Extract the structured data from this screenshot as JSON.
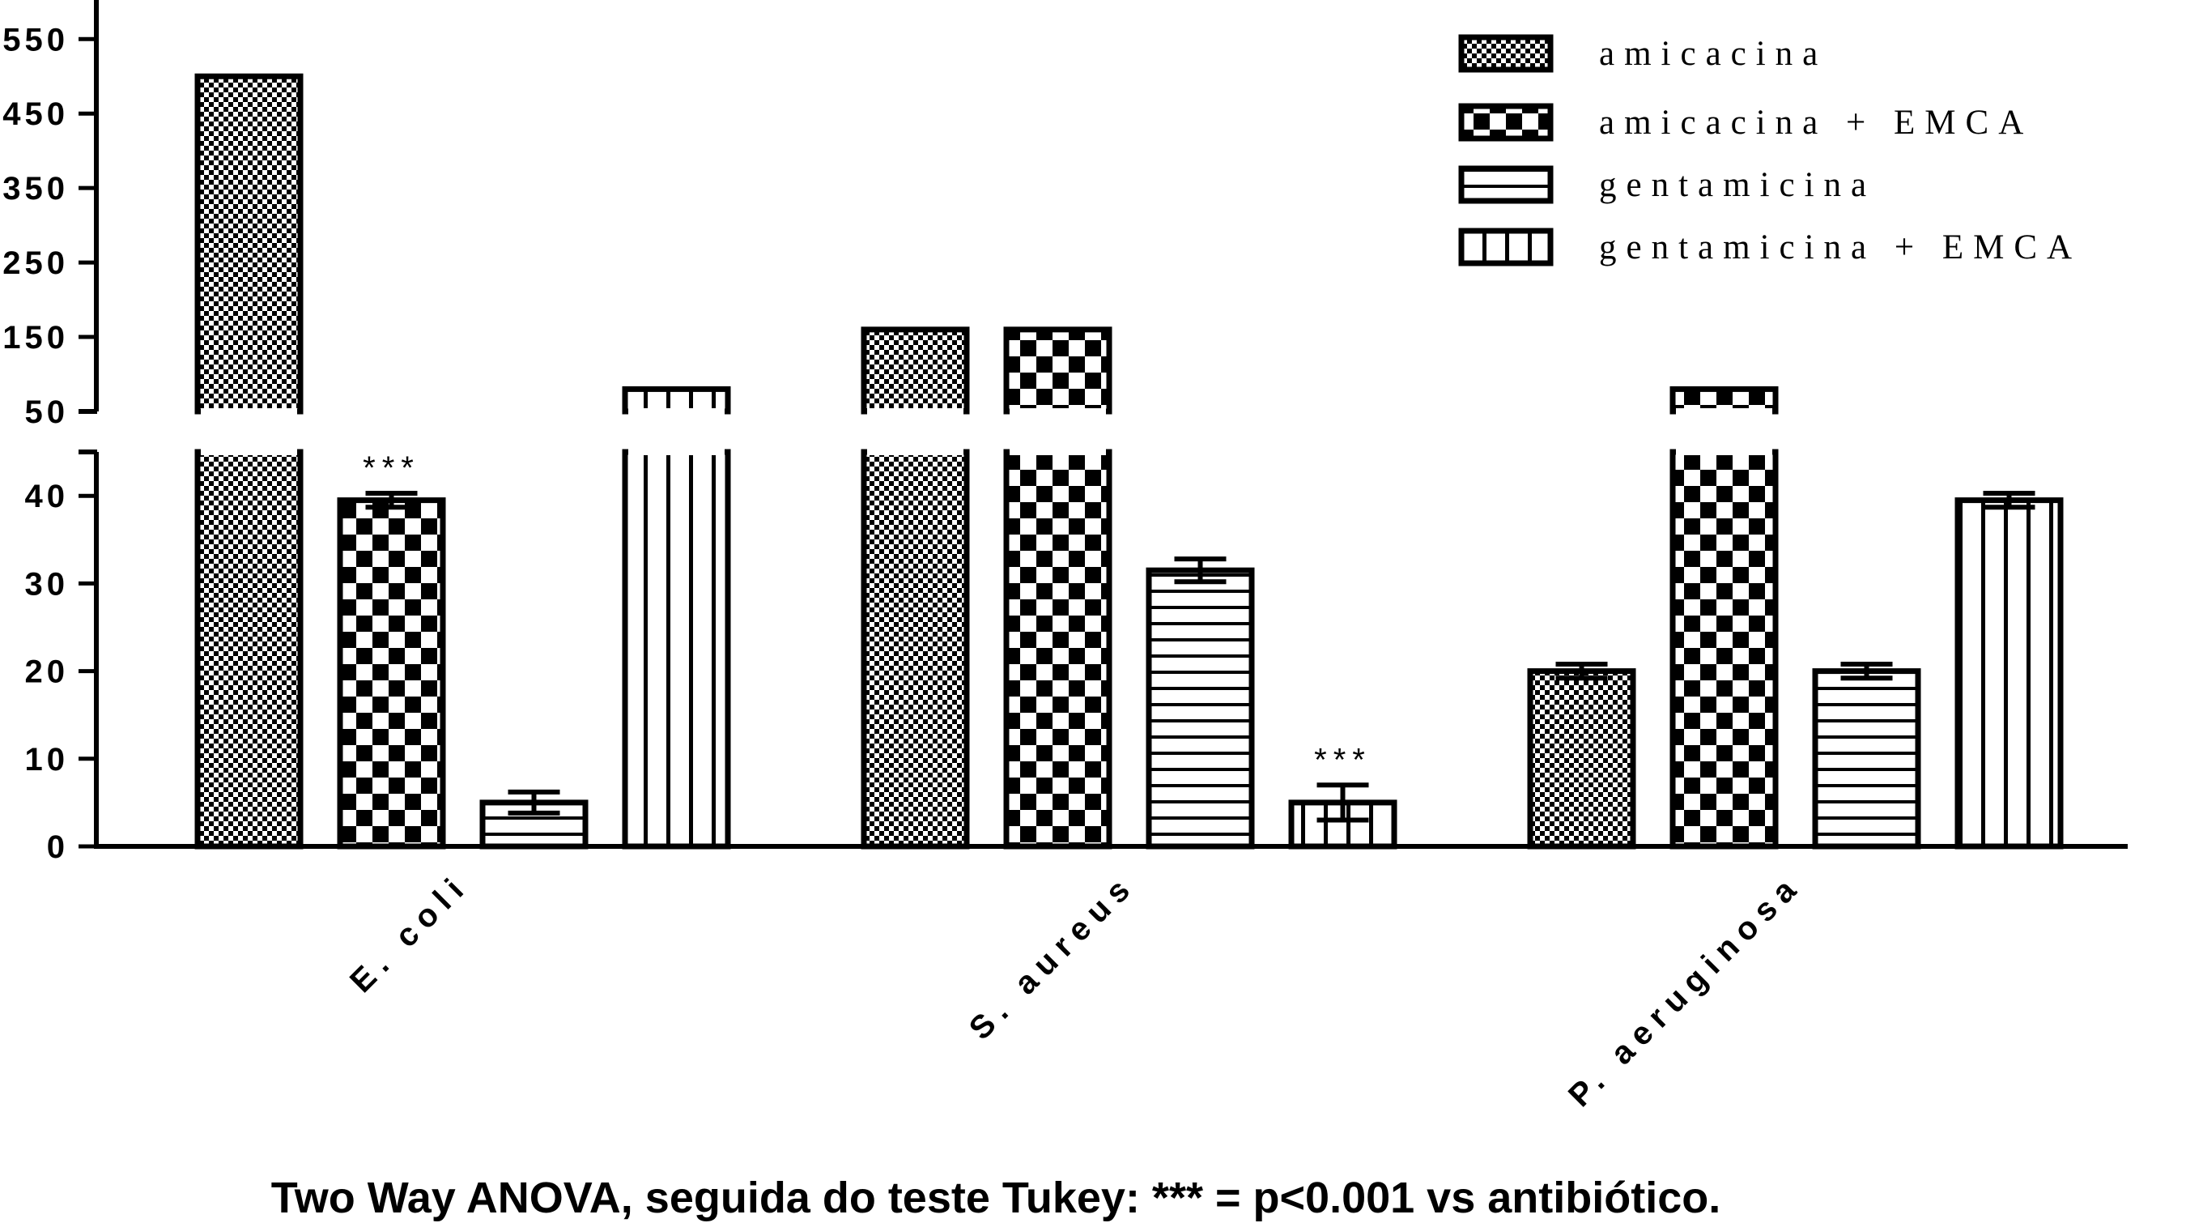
{
  "chart_data": {
    "type": "bar",
    "categories": [
      "E. coli",
      "S. aureus",
      "P. aeruginosa"
    ],
    "series": [
      {
        "name": "amicacina",
        "pattern": "fine-checker",
        "values": [
          500,
          160,
          20
        ],
        "errors": [
          0,
          0,
          0.8
        ]
      },
      {
        "name": "amicacina + EMCA",
        "pattern": "coarse-checker",
        "values": [
          39.5,
          160,
          80
        ],
        "errors": [
          0.8,
          0,
          0
        ]
      },
      {
        "name": "gentamicina",
        "pattern": "horizontal-stripes",
        "values": [
          5,
          31.5,
          20
        ],
        "errors": [
          1.2,
          1.3,
          0.8
        ]
      },
      {
        "name": "gentamicina + EMCA",
        "pattern": "vertical-stripes",
        "values": [
          80,
          5,
          39.5
        ],
        "errors": [
          0,
          2,
          0.8
        ]
      }
    ],
    "axis_break": {
      "lower_max": 45,
      "upper_min": 50
    },
    "ylim": [
      0,
      550
    ],
    "yticks_lower": [
      "0",
      "10",
      "20",
      "30",
      "40"
    ],
    "yticks_upper": [
      "50",
      "150",
      "250",
      "350",
      "450",
      "550"
    ],
    "annotations": [
      {
        "text": "***",
        "category": "E. coli",
        "series": "amicacina + EMCA"
      },
      {
        "text": "***",
        "category": "S. aureus",
        "series": "gentamicina + EMCA"
      }
    ],
    "legend_position": "top-right",
    "xlabel": "",
    "ylabel": "",
    "caption": "Two Way ANOVA, seguida do teste Tukey: *** = p<0.001 vs antibiótico."
  },
  "colors": {
    "bar_stroke": "#000000",
    "bar_fill": "#ffffff",
    "background": "#ffffff"
  }
}
